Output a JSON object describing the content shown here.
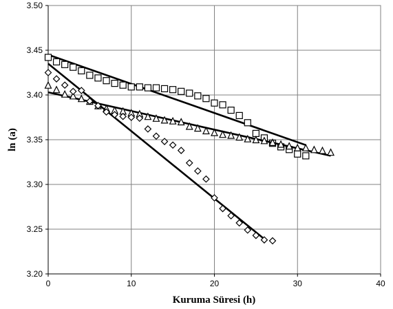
{
  "chart_data": {
    "type": "scatter",
    "title": "",
    "xlabel": "Kuruma Süresi (h)",
    "ylabel": "ln (a)",
    "xlim": [
      0,
      40
    ],
    "ylim": [
      3.2,
      3.5
    ],
    "x_ticks": [
      "0",
      "10",
      "20",
      "30",
      "40"
    ],
    "y_ticks": [
      "3.20",
      "3.25",
      "3.30",
      "3.35",
      "3.40",
      "3.45",
      "3.50"
    ],
    "grid": true,
    "legend": "none",
    "series": [
      {
        "marker": "square",
        "points": [
          [
            0,
            3.442
          ],
          [
            1,
            3.437
          ],
          [
            2,
            3.434
          ],
          [
            3,
            3.431
          ],
          [
            4,
            3.427
          ],
          [
            5,
            3.422
          ],
          [
            6,
            3.419
          ],
          [
            7,
            3.416
          ],
          [
            8,
            3.413
          ],
          [
            9,
            3.411
          ],
          [
            10,
            3.409
          ],
          [
            11,
            3.409
          ],
          [
            12,
            3.408
          ],
          [
            13,
            3.408
          ],
          [
            14,
            3.407
          ],
          [
            15,
            3.406
          ],
          [
            16,
            3.404
          ],
          [
            17,
            3.402
          ],
          [
            18,
            3.399
          ],
          [
            19,
            3.396
          ],
          [
            20,
            3.391
          ],
          [
            21,
            3.389
          ],
          [
            22,
            3.383
          ],
          [
            23,
            3.377
          ],
          [
            24,
            3.369
          ],
          [
            25,
            3.357
          ],
          [
            26,
            3.352
          ],
          [
            27,
            3.346
          ],
          [
            28,
            3.342
          ],
          [
            29,
            3.339
          ],
          [
            30,
            3.334
          ],
          [
            31,
            3.332
          ]
        ],
        "fit": [
          [
            0,
            3.445
          ],
          [
            31,
            3.344
          ]
        ]
      },
      {
        "marker": "triangle",
        "points": [
          [
            0,
            3.411
          ],
          [
            1,
            3.406
          ],
          [
            2,
            3.401
          ],
          [
            3,
            3.399
          ],
          [
            4,
            3.396
          ],
          [
            5,
            3.393
          ],
          [
            6,
            3.388
          ],
          [
            7,
            3.385
          ],
          [
            8,
            3.383
          ],
          [
            9,
            3.382
          ],
          [
            10,
            3.38
          ],
          [
            11,
            3.379
          ],
          [
            12,
            3.376
          ],
          [
            13,
            3.374
          ],
          [
            14,
            3.372
          ],
          [
            15,
            3.371
          ],
          [
            16,
            3.37
          ],
          [
            17,
            3.365
          ],
          [
            18,
            3.363
          ],
          [
            19,
            3.36
          ],
          [
            20,
            3.358
          ],
          [
            21,
            3.356
          ],
          [
            22,
            3.355
          ],
          [
            23,
            3.353
          ],
          [
            24,
            3.351
          ],
          [
            25,
            3.35
          ],
          [
            26,
            3.349
          ],
          [
            27,
            3.347
          ],
          [
            28,
            3.345
          ],
          [
            29,
            3.343
          ],
          [
            30,
            3.341
          ],
          [
            31,
            3.341
          ],
          [
            32,
            3.339
          ],
          [
            33,
            3.338
          ],
          [
            34,
            3.336
          ]
        ],
        "fit": [
          [
            0,
            3.403
          ],
          [
            34,
            3.332
          ]
        ]
      },
      {
        "marker": "diamond",
        "points": [
          [
            0,
            3.425
          ],
          [
            1,
            3.418
          ],
          [
            2,
            3.411
          ],
          [
            3,
            3.404
          ],
          [
            4,
            3.405
          ],
          [
            5,
            3.393
          ],
          [
            6,
            3.388
          ],
          [
            7,
            3.381
          ],
          [
            8,
            3.378
          ],
          [
            9,
            3.376
          ],
          [
            10,
            3.375
          ],
          [
            11,
            3.374
          ],
          [
            12,
            3.362
          ],
          [
            13,
            3.354
          ],
          [
            14,
            3.348
          ],
          [
            15,
            3.344
          ],
          [
            16,
            3.338
          ],
          [
            17,
            3.324
          ],
          [
            18,
            3.315
          ],
          [
            19,
            3.306
          ],
          [
            20,
            3.285
          ],
          [
            21,
            3.273
          ],
          [
            22,
            3.265
          ],
          [
            23,
            3.257
          ],
          [
            24,
            3.249
          ],
          [
            25,
            3.243
          ],
          [
            26,
            3.238
          ],
          [
            27,
            3.237
          ]
        ],
        "fit": [
          [
            0,
            3.435
          ],
          [
            26,
            3.239
          ]
        ]
      }
    ]
  }
}
